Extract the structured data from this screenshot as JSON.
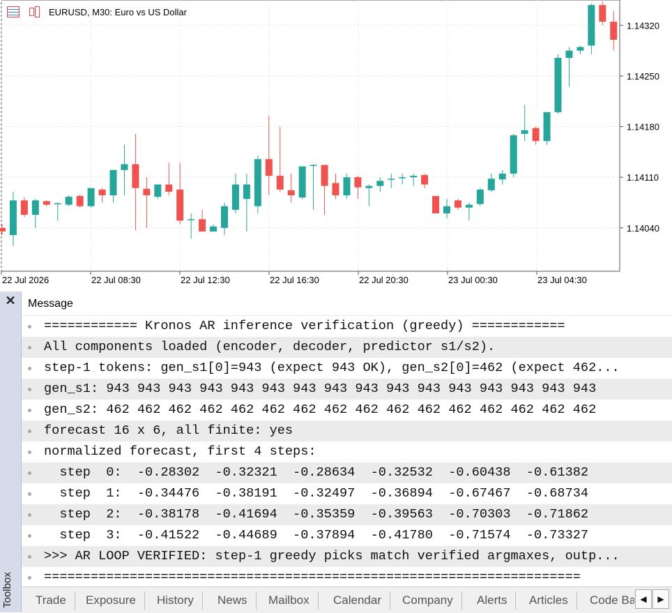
{
  "chart": {
    "title": "EURUSD, M30:  Euro vs US Dollar",
    "colors": {
      "bull": "#26a69a",
      "bear": "#ef5350",
      "grid": "#e8e8e8"
    },
    "icons": [
      "grid-window-icon",
      "candles-icon"
    ],
    "y_labels": [
      "1.14320",
      "1.14250",
      "1.14180",
      "1.14110",
      "1.14040"
    ],
    "x_labels": [
      "22 Jul 2026",
      "22 Jul 08:30",
      "22 Jul 12:30",
      "22 Jul 16:30",
      "22 Jul 20:30",
      "23 Jul 00:30",
      "23 Jul 04:30"
    ]
  },
  "chart_data": {
    "type": "candlestick",
    "title": "EURUSD, M30:  Euro vs US Dollar",
    "ylim": [
      1.1398,
      1.14355
    ],
    "candles": [
      {
        "o": 1.1404,
        "h": 1.14045,
        "l": 1.1403,
        "c": 1.14035
      },
      {
        "o": 1.1403,
        "h": 1.1409,
        "l": 1.14015,
        "c": 1.14078
      },
      {
        "o": 1.14078,
        "h": 1.14082,
        "l": 1.14055,
        "c": 1.14058
      },
      {
        "o": 1.14058,
        "h": 1.1408,
        "l": 1.1404,
        "c": 1.14078
      },
      {
        "o": 1.14077,
        "h": 1.14078,
        "l": 1.1407,
        "c": 1.14072
      },
      {
        "o": 1.14073,
        "h": 1.14075,
        "l": 1.1405,
        "c": 1.14074
      },
      {
        "o": 1.14072,
        "h": 1.14085,
        "l": 1.1407,
        "c": 1.14083
      },
      {
        "o": 1.14084,
        "h": 1.14086,
        "l": 1.14068,
        "c": 1.1407
      },
      {
        "o": 1.1407,
        "h": 1.14095,
        "l": 1.14068,
        "c": 1.14095
      },
      {
        "o": 1.14093,
        "h": 1.14095,
        "l": 1.14075,
        "c": 1.14085
      },
      {
        "o": 1.14085,
        "h": 1.1412,
        "l": 1.14075,
        "c": 1.1412
      },
      {
        "o": 1.1412,
        "h": 1.14155,
        "l": 1.14085,
        "c": 1.14128
      },
      {
        "o": 1.14128,
        "h": 1.1417,
        "l": 1.14037,
        "c": 1.14095
      },
      {
        "o": 1.14094,
        "h": 1.1411,
        "l": 1.1404,
        "c": 1.14085
      },
      {
        "o": 1.14083,
        "h": 1.141,
        "l": 1.1408,
        "c": 1.141
      },
      {
        "o": 1.141,
        "h": 1.1413,
        "l": 1.14085,
        "c": 1.1409
      },
      {
        "o": 1.14093,
        "h": 1.1413,
        "l": 1.14045,
        "c": 1.1405
      },
      {
        "o": 1.14052,
        "h": 1.1406,
        "l": 1.14025,
        "c": 1.14052
      },
      {
        "o": 1.14052,
        "h": 1.14065,
        "l": 1.14035,
        "c": 1.14035
      },
      {
        "o": 1.14035,
        "h": 1.14045,
        "l": 1.14035,
        "c": 1.14042
      },
      {
        "o": 1.1404,
        "h": 1.14075,
        "l": 1.1403,
        "c": 1.1407
      },
      {
        "o": 1.14065,
        "h": 1.14115,
        "l": 1.1406,
        "c": 1.141
      },
      {
        "o": 1.1408,
        "h": 1.14115,
        "l": 1.14035,
        "c": 1.141
      },
      {
        "o": 1.1407,
        "h": 1.1414,
        "l": 1.1406,
        "c": 1.14135
      },
      {
        "o": 1.14135,
        "h": 1.14195,
        "l": 1.14085,
        "c": 1.14112
      },
      {
        "o": 1.14112,
        "h": 1.1418,
        "l": 1.1409,
        "c": 1.14093
      },
      {
        "o": 1.14092,
        "h": 1.14115,
        "l": 1.14075,
        "c": 1.14085
      },
      {
        "o": 1.14082,
        "h": 1.14125,
        "l": 1.1408,
        "c": 1.14125
      },
      {
        "o": 1.14127,
        "h": 1.14128,
        "l": 1.14065,
        "c": 1.14127
      },
      {
        "o": 1.14127,
        "h": 1.14125,
        "l": 1.14058,
        "c": 1.14098
      },
      {
        "o": 1.14102,
        "h": 1.14115,
        "l": 1.1408,
        "c": 1.14085
      },
      {
        "o": 1.14085,
        "h": 1.14115,
        "l": 1.1408,
        "c": 1.1411
      },
      {
        "o": 1.1411,
        "h": 1.14112,
        "l": 1.1408,
        "c": 1.14096
      },
      {
        "o": 1.14095,
        "h": 1.141,
        "l": 1.1407,
        "c": 1.14098
      },
      {
        "o": 1.14098,
        "h": 1.1411,
        "l": 1.1409,
        "c": 1.14105
      },
      {
        "o": 1.14108,
        "h": 1.14115,
        "l": 1.14095,
        "c": 1.14108
      },
      {
        "o": 1.14109,
        "h": 1.14115,
        "l": 1.141,
        "c": 1.1411
      },
      {
        "o": 1.1411,
        "h": 1.14115,
        "l": 1.14098,
        "c": 1.14112
      },
      {
        "o": 1.14113,
        "h": 1.14115,
        "l": 1.14095,
        "c": 1.141
      },
      {
        "o": 1.14084,
        "h": 1.14082,
        "l": 1.1406,
        "c": 1.1406
      },
      {
        "o": 1.1406,
        "h": 1.1408,
        "l": 1.14053,
        "c": 1.1407
      },
      {
        "o": 1.14078,
        "h": 1.1408,
        "l": 1.14065,
        "c": 1.14068
      },
      {
        "o": 1.14068,
        "h": 1.14075,
        "l": 1.1405,
        "c": 1.14072
      },
      {
        "o": 1.14073,
        "h": 1.14095,
        "l": 1.1407,
        "c": 1.14093
      },
      {
        "o": 1.14092,
        "h": 1.14115,
        "l": 1.1409,
        "c": 1.14108
      },
      {
        "o": 1.14107,
        "h": 1.1412,
        "l": 1.141,
        "c": 1.14115
      },
      {
        "o": 1.14115,
        "h": 1.1417,
        "l": 1.1411,
        "c": 1.14168
      },
      {
        "o": 1.1417,
        "h": 1.1421,
        "l": 1.1416,
        "c": 1.14175
      },
      {
        "o": 1.14178,
        "h": 1.1418,
        "l": 1.14155,
        "c": 1.1416
      },
      {
        "o": 1.1416,
        "h": 1.142,
        "l": 1.14155,
        "c": 1.142
      },
      {
        "o": 1.142,
        "h": 1.1428,
        "l": 1.14198,
        "c": 1.14275
      },
      {
        "o": 1.14275,
        "h": 1.1429,
        "l": 1.14235,
        "c": 1.14285
      },
      {
        "o": 1.14285,
        "h": 1.14292,
        "l": 1.1428,
        "c": 1.1429
      },
      {
        "o": 1.14292,
        "h": 1.1435,
        "l": 1.1428,
        "c": 1.14348
      },
      {
        "o": 1.14348,
        "h": 1.14353,
        "l": 1.1432,
        "c": 1.14325
      },
      {
        "o": 1.14325,
        "h": 1.1434,
        "l": 1.14285,
        "c": 1.143
      }
    ]
  },
  "toolbox": {
    "label": "Toolbox",
    "header": "Message",
    "rows": [
      "============ Kronos AR inference verification (greedy) ============",
      "All components loaded (encoder, decoder, predictor s1/s2).",
      "step-1 tokens: gen_s1[0]=943 (expect 943 OK), gen_s2[0]=462 (expect 462...",
      "gen_s1: 943 943 943 943 943 943 943 943 943 943 943 943 943 943 943 943",
      "gen_s2: 462 462 462 462 462 462 462 462 462 462 462 462 462 462 462 462",
      "forecast 16 x 6, all finite: yes",
      "normalized forecast, first 4 steps:",
      "  step  0:  -0.28302  -0.32321  -0.28634  -0.32532  -0.60438  -0.61382",
      "  step  1:  -0.34476  -0.38191  -0.32497  -0.36894  -0.67467  -0.68734",
      "  step  2:  -0.38178  -0.41694  -0.35359  -0.39563  -0.70303  -0.71862",
      "  step  3:  -0.41522  -0.44689  -0.37894  -0.41780  -0.71574  -0.73327",
      ">>> AR LOOP VERIFIED: step-1 greedy picks match verified argmaxes, outp...",
      "====================================================================="
    ],
    "tabs": [
      "Trade",
      "Exposure",
      "History",
      "News",
      "Mailbox",
      "Calendar",
      "Company",
      "Alerts",
      "Articles",
      "Code Ba"
    ],
    "scroll_left": "◀",
    "scroll_right": "▶",
    "close": "✕"
  }
}
